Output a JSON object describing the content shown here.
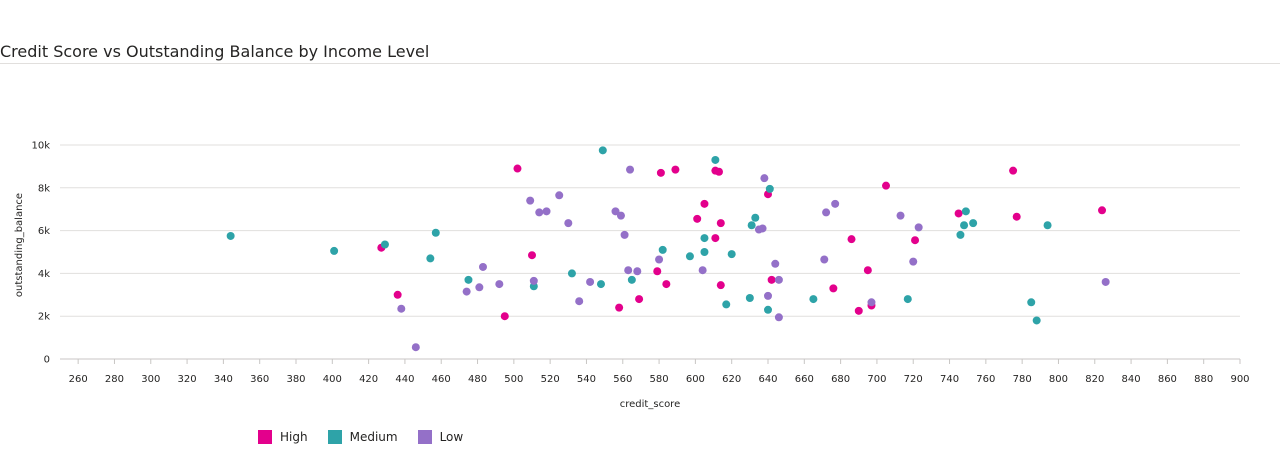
{
  "chart_data": {
    "type": "scatter",
    "title": "Credit Score vs Outstanding Balance by Income Level",
    "xlabel": "credit_score",
    "ylabel": "outstanding_balance",
    "xlim": [
      250,
      900
    ],
    "ylim": [
      0,
      10000
    ],
    "x_ticks": [
      260,
      280,
      300,
      320,
      340,
      360,
      380,
      400,
      420,
      440,
      460,
      480,
      500,
      520,
      540,
      560,
      580,
      600,
      620,
      640,
      660,
      680,
      700,
      720,
      740,
      760,
      780,
      800,
      820,
      840,
      860,
      880,
      900
    ],
    "y_ticks": [
      0,
      2000,
      4000,
      6000,
      8000,
      10000
    ],
    "y_tick_labels": [
      "0",
      "2k",
      "4k",
      "6k",
      "8k",
      "10k"
    ],
    "grid": "horizontal",
    "legend_position": "bottom-left",
    "series": [
      {
        "name": "High",
        "color": "#e3008c",
        "points": [
          [
            427,
            5200
          ],
          [
            436,
            3000
          ],
          [
            495,
            2000
          ],
          [
            502,
            8900
          ],
          [
            510,
            4850
          ],
          [
            558,
            2400
          ],
          [
            569,
            2800
          ],
          [
            579,
            4100
          ],
          [
            581,
            8700
          ],
          [
            584,
            3500
          ],
          [
            589,
            8850
          ],
          [
            601,
            6550
          ],
          [
            605,
            7250
          ],
          [
            611,
            5650
          ],
          [
            611,
            8800
          ],
          [
            613,
            8750
          ],
          [
            614,
            3450
          ],
          [
            614,
            6350
          ],
          [
            640,
            7700
          ],
          [
            642,
            3700
          ],
          [
            676,
            3300
          ],
          [
            686,
            5600
          ],
          [
            690,
            2250
          ],
          [
            695,
            4150
          ],
          [
            697,
            2500
          ],
          [
            705,
            8100
          ],
          [
            721,
            5550
          ],
          [
            745,
            6800
          ],
          [
            775,
            8800
          ],
          [
            777,
            6650
          ],
          [
            824,
            6950
          ]
        ]
      },
      {
        "name": "Medium",
        "color": "#2ea3a8",
        "points": [
          [
            344,
            5750
          ],
          [
            401,
            5050
          ],
          [
            429,
            5350
          ],
          [
            454,
            4700
          ],
          [
            457,
            5900
          ],
          [
            475,
            3700
          ],
          [
            511,
            3400
          ],
          [
            532,
            4000
          ],
          [
            548,
            3500
          ],
          [
            549,
            9750
          ],
          [
            565,
            3700
          ],
          [
            582,
            5100
          ],
          [
            597,
            4800
          ],
          [
            605,
            5650
          ],
          [
            605,
            5000
          ],
          [
            611,
            9300
          ],
          [
            617,
            2550
          ],
          [
            620,
            4900
          ],
          [
            630,
            2850
          ],
          [
            631,
            6250
          ],
          [
            633,
            6600
          ],
          [
            640,
            2300
          ],
          [
            641,
            7950
          ],
          [
            665,
            2800
          ],
          [
            717,
            2800
          ],
          [
            746,
            5800
          ],
          [
            748,
            6250
          ],
          [
            749,
            6900
          ],
          [
            753,
            6350
          ],
          [
            785,
            2650
          ],
          [
            788,
            1800
          ],
          [
            794,
            6250
          ]
        ]
      },
      {
        "name": "Low",
        "color": "#9470c8",
        "points": [
          [
            438,
            2350
          ],
          [
            446,
            550
          ],
          [
            474,
            3150
          ],
          [
            481,
            3350
          ],
          [
            483,
            4300
          ],
          [
            492,
            3500
          ],
          [
            509,
            7400
          ],
          [
            511,
            3650
          ],
          [
            514,
            6850
          ],
          [
            518,
            6900
          ],
          [
            525,
            7650
          ],
          [
            530,
            6350
          ],
          [
            536,
            2700
          ],
          [
            542,
            3600
          ],
          [
            556,
            6900
          ],
          [
            559,
            6700
          ],
          [
            561,
            5800
          ],
          [
            563,
            4150
          ],
          [
            564,
            8850
          ],
          [
            568,
            4100
          ],
          [
            580,
            4650
          ],
          [
            604,
            4150
          ],
          [
            635,
            6050
          ],
          [
            637,
            6100
          ],
          [
            638,
            8450
          ],
          [
            640,
            2950
          ],
          [
            644,
            4450
          ],
          [
            646,
            3700
          ],
          [
            646,
            1950
          ],
          [
            671,
            4650
          ],
          [
            672,
            6850
          ],
          [
            677,
            7250
          ],
          [
            697,
            2650
          ],
          [
            713,
            6700
          ],
          [
            720,
            4550
          ],
          [
            723,
            6150
          ],
          [
            826,
            3600
          ]
        ]
      }
    ]
  }
}
